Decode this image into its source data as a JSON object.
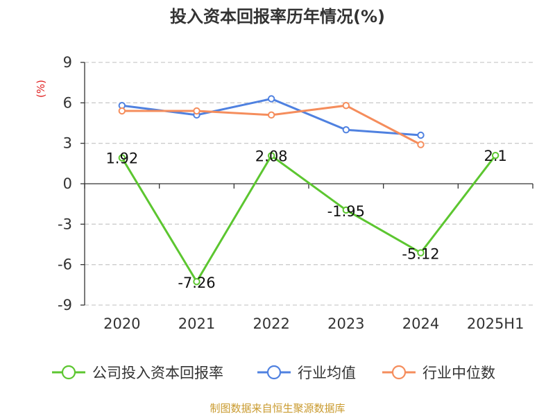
{
  "chart_data": {
    "type": "line",
    "title": "投入资本回报率历年情况(%)",
    "ylabel": "(%)",
    "xlabel": "",
    "categories": [
      "2020",
      "2021",
      "2022",
      "2023",
      "2024",
      "2025H1"
    ],
    "yticks": [
      9,
      6,
      3,
      0,
      -3,
      -6,
      -9
    ],
    "ylim": [
      -9,
      9
    ],
    "grid": true,
    "legend_position": "bottom",
    "series": [
      {
        "name": "公司投入资本回报率",
        "color": "#5cc630",
        "values": [
          1.92,
          -7.26,
          2.08,
          -1.95,
          -5.12,
          2.1
        ],
        "labels": [
          "1.92",
          "-7.26",
          "2.08",
          "-1.95",
          "-5.12",
          "2.1"
        ]
      },
      {
        "name": "行业均值",
        "color": "#4f81e0",
        "values": [
          5.8,
          5.1,
          6.3,
          4.0,
          3.6,
          null
        ]
      },
      {
        "name": "行业中位数",
        "color": "#f58d5c",
        "values": [
          5.4,
          5.4,
          5.1,
          5.8,
          2.9,
          null
        ]
      }
    ]
  },
  "source_text": "制图数据来自恒生聚源数据库"
}
